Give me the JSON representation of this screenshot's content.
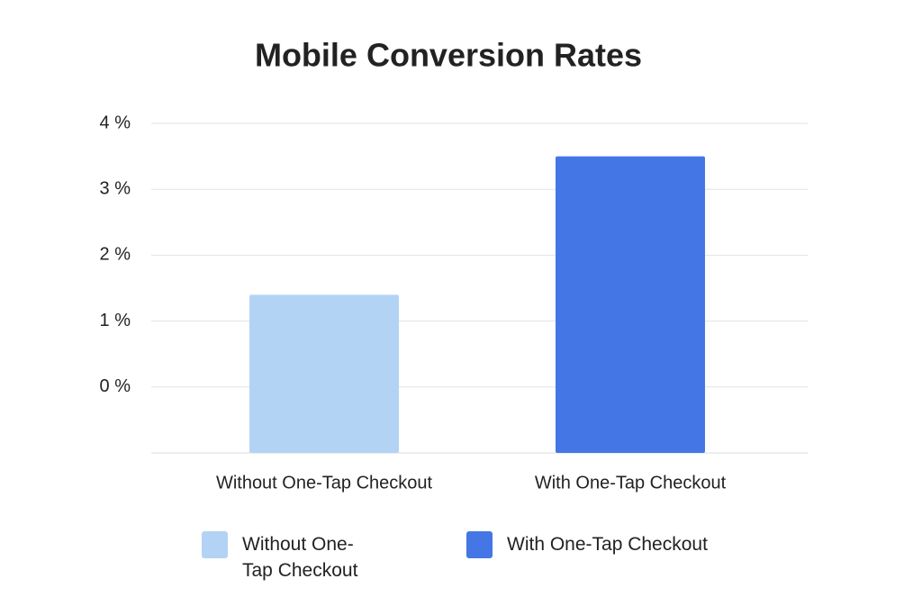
{
  "chart_data": {
    "type": "bar",
    "title": "Mobile Conversion Rates",
    "categories": [
      "Without One-Tap Checkout",
      "With One-Tap Checkout"
    ],
    "values": [
      1.4,
      3.5
    ],
    "colors": [
      "#b3d3f5",
      "#4477e5"
    ],
    "ylim": [
      -1,
      4
    ],
    "yticks": [
      {
        "value": 0,
        "label": "0 %"
      },
      {
        "value": 1,
        "label": "1 %"
      },
      {
        "value": 2,
        "label": "2 %"
      },
      {
        "value": 3,
        "label": "3 %"
      },
      {
        "value": 4,
        "label": "4 %"
      }
    ],
    "grid": true,
    "legend": "bottom"
  }
}
